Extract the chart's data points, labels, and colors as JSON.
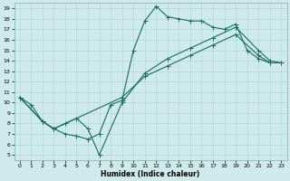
{
  "xlabel": "Humidex (Indice chaleur)",
  "bg_color": "#ceeaea",
  "line_color": "#1a6b5a",
  "xlim": [
    -0.5,
    23.5
  ],
  "ylim": [
    4.5,
    19.5
  ],
  "xticks": [
    0,
    1,
    2,
    3,
    4,
    5,
    6,
    7,
    8,
    9,
    10,
    11,
    12,
    13,
    14,
    15,
    16,
    17,
    18,
    19,
    20,
    21,
    22,
    23
  ],
  "yticks": [
    5,
    6,
    7,
    8,
    9,
    10,
    11,
    12,
    13,
    14,
    15,
    16,
    17,
    18,
    19
  ],
  "line1_x": [
    0,
    1,
    2,
    3,
    4,
    5,
    6,
    7,
    8,
    9,
    10,
    11,
    12,
    13,
    14,
    15,
    16,
    17,
    18,
    19,
    20,
    21,
    22
  ],
  "line1_y": [
    10.5,
    9.8,
    8.2,
    7.5,
    7.0,
    6.8,
    6.5,
    7.0,
    9.8,
    10.2,
    15.0,
    17.8,
    19.2,
    18.2,
    18.0,
    17.8,
    17.8,
    17.2,
    17.0,
    17.5,
    15.0,
    14.2,
    13.8
  ],
  "line2_x": [
    0,
    2,
    3,
    4,
    5,
    6,
    7,
    9,
    11,
    13,
    15,
    17,
    19,
    21,
    22,
    23
  ],
  "line2_y": [
    10.5,
    8.2,
    7.5,
    8.0,
    8.5,
    7.5,
    5.0,
    10.0,
    12.8,
    14.2,
    15.2,
    16.2,
    17.2,
    15.0,
    14.0,
    13.8
  ],
  "line3_x": [
    0,
    2,
    3,
    9,
    11,
    13,
    15,
    17,
    19,
    21,
    22,
    23
  ],
  "line3_y": [
    10.5,
    8.2,
    7.5,
    10.5,
    12.5,
    13.5,
    14.5,
    15.5,
    16.5,
    14.5,
    13.8,
    13.8
  ]
}
